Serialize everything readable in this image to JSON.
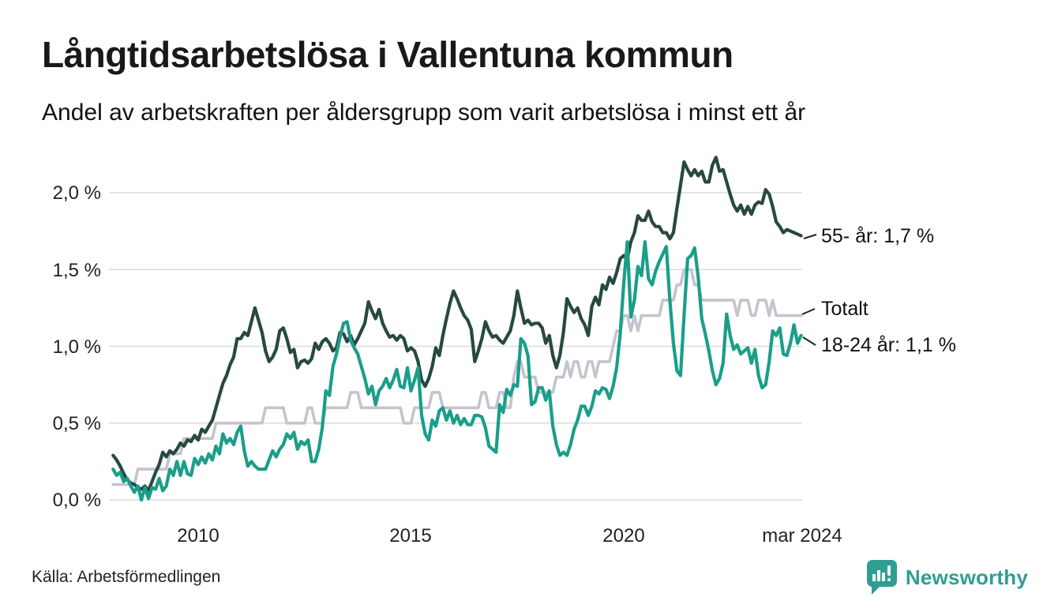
{
  "header": {
    "title": "Långtidsarbetslösa i Vallentuna kommun",
    "subtitle": "Andel av arbetskraften per åldersgrupp som varit arbetslösa i minst ett år"
  },
  "footer": {
    "source": "Källa: Arbetsförmedlingen",
    "brand_name": "Newsworthy",
    "brand_icon": "bar-chart-speech-bubble",
    "brand_color": "#2E9E93"
  },
  "colors": {
    "series_55": "#27493F",
    "series_total": "#C4C3CE",
    "series_18_24": "#1A9E8A",
    "gridline": "#DBDBDB",
    "leader": "#222222"
  },
  "chart_data": {
    "type": "line",
    "title": "Långtidsarbetslösa i Vallentuna kommun",
    "subtitle": "Andel av arbetskraften per åldersgrupp som varit arbetslösa i minst ett år",
    "x_unit": "month",
    "x_start": "2008-01",
    "x_end": "2024-03",
    "grid": true,
    "ylim": [
      0,
      2.3
    ],
    "y_ticks": [
      {
        "value": 2.0,
        "label": "2,0 %"
      },
      {
        "value": 1.5,
        "label": "1,5 %"
      },
      {
        "value": 1.0,
        "label": "1,0 %"
      },
      {
        "value": 0.5,
        "label": "0,5 %"
      },
      {
        "value": 0.0,
        "label": "0,0 %"
      }
    ],
    "x_ticks": [
      {
        "year": 2010.0,
        "label": "2010"
      },
      {
        "year": 2015.0,
        "label": "2015"
      },
      {
        "year": 2020.0,
        "label": "2020"
      },
      {
        "year": 2024.1667,
        "label": "mar 2024"
      }
    ],
    "series": [
      {
        "name": "Totalt",
        "end_label": "Totalt",
        "end_value": 1.2,
        "color": "#C4C3CE",
        "values": [
          0.1,
          0.1,
          0.1,
          0.1,
          0.1,
          0.1,
          0.1,
          0.2,
          0.2,
          0.2,
          0.2,
          0.2,
          0.2,
          0.2,
          0.2,
          0.2,
          0.3,
          0.3,
          0.3,
          0.3,
          0.4,
          0.4,
          0.4,
          0.4,
          0.4,
          0.4,
          0.4,
          0.4,
          0.4,
          0.5,
          0.5,
          0.5,
          0.5,
          0.5,
          0.5,
          0.5,
          0.5,
          0.5,
          0.5,
          0.5,
          0.5,
          0.5,
          0.5,
          0.6,
          0.6,
          0.6,
          0.6,
          0.6,
          0.6,
          0.5,
          0.5,
          0.5,
          0.5,
          0.5,
          0.5,
          0.6,
          0.6,
          0.5,
          0.5,
          0.5,
          0.6,
          0.6,
          0.6,
          0.6,
          0.6,
          0.6,
          0.6,
          0.7,
          0.7,
          0.7,
          0.6,
          0.6,
          0.6,
          0.6,
          0.6,
          0.6,
          0.6,
          0.6,
          0.6,
          0.6,
          0.6,
          0.6,
          0.5,
          0.5,
          0.5,
          0.6,
          0.6,
          0.6,
          0.6,
          0.6,
          0.7,
          0.7,
          0.7,
          0.6,
          0.6,
          0.6,
          0.6,
          0.6,
          0.6,
          0.6,
          0.6,
          0.6,
          0.6,
          0.6,
          0.7,
          0.7,
          0.6,
          0.6,
          0.6,
          0.7,
          0.7,
          0.6,
          0.6,
          0.8,
          0.9,
          0.9,
          0.8,
          0.8,
          0.8,
          0.8,
          0.7,
          0.7,
          0.7,
          0.7,
          0.7,
          0.8,
          0.8,
          0.8,
          0.9,
          0.8,
          0.9,
          0.9,
          0.8,
          0.8,
          0.9,
          0.9,
          0.8,
          0.9,
          0.9,
          0.9,
          0.9,
          1.0,
          1.1,
          1.1,
          1.2,
          1.2,
          1.1,
          1.2,
          1.1,
          1.2,
          1.2,
          1.2,
          1.2,
          1.2,
          1.2,
          1.3,
          1.3,
          1.3,
          1.3,
          1.4,
          1.4,
          1.5,
          1.5,
          1.5,
          1.4,
          1.4,
          1.3,
          1.3,
          1.3,
          1.3,
          1.3,
          1.3,
          1.3,
          1.3,
          1.3,
          1.3,
          1.2,
          1.3,
          1.3,
          1.3,
          1.2,
          1.2,
          1.3,
          1.3,
          1.3,
          1.2,
          1.3,
          1.2,
          1.2,
          1.2,
          1.2,
          1.2,
          1.2,
          1.2,
          1.2
        ]
      },
      {
        "name": "55- år",
        "end_label": "55- år: 1,7 %",
        "end_value": 1.7,
        "color": "#27493F",
        "values": [
          0.29,
          0.26,
          0.22,
          0.17,
          0.13,
          0.11,
          0.1,
          0.08,
          0.07,
          0.09,
          0.06,
          0.12,
          0.18,
          0.23,
          0.31,
          0.28,
          0.32,
          0.3,
          0.33,
          0.37,
          0.35,
          0.39,
          0.38,
          0.42,
          0.39,
          0.46,
          0.44,
          0.48,
          0.52,
          0.6,
          0.68,
          0.76,
          0.81,
          0.88,
          0.93,
          1.05,
          1.05,
          1.09,
          1.07,
          1.16,
          1.25,
          1.17,
          1.09,
          0.97,
          0.9,
          0.93,
          0.98,
          1.1,
          1.12,
          1.05,
          0.96,
          0.98,
          0.86,
          0.9,
          0.91,
          0.89,
          0.92,
          1.02,
          0.98,
          1.03,
          1.05,
          1.02,
          0.97,
          0.99,
          1.09,
          1.08,
          1.03,
          1.07,
          1.01,
          1.05,
          1.1,
          1.15,
          1.29,
          1.23,
          1.18,
          1.24,
          1.15,
          1.1,
          1.06,
          1.07,
          1.04,
          1.07,
          1.05,
          0.97,
          0.99,
          0.97,
          0.9,
          0.78,
          0.74,
          0.79,
          0.87,
          0.99,
          0.94,
          1.07,
          1.18,
          1.28,
          1.36,
          1.31,
          1.25,
          1.2,
          1.17,
          1.11,
          0.9,
          0.97,
          1.05,
          1.16,
          1.1,
          1.06,
          1.07,
          1.04,
          1.02,
          1.06,
          1.1,
          1.2,
          1.36,
          1.25,
          1.15,
          1.17,
          1.14,
          1.15,
          1.15,
          1.12,
          1.02,
          1.07,
          0.94,
          0.86,
          0.94,
          1.09,
          1.31,
          1.26,
          1.22,
          1.25,
          1.18,
          1.14,
          1.07,
          1.26,
          1.32,
          1.27,
          1.4,
          1.37,
          1.45,
          1.41,
          1.48,
          1.57,
          1.59,
          1.57,
          1.68,
          1.74,
          1.85,
          1.82,
          1.82,
          1.88,
          1.81,
          1.78,
          1.78,
          1.74,
          1.74,
          1.7,
          1.74,
          1.9,
          2.05,
          2.2,
          2.15,
          2.11,
          2.15,
          2.11,
          2.14,
          2.07,
          2.07,
          2.18,
          2.23,
          2.14,
          2.15,
          2.07,
          1.99,
          1.92,
          1.88,
          1.92,
          1.86,
          1.91,
          1.86,
          1.92,
          1.94,
          1.93,
          2.02,
          1.99,
          1.91,
          1.81,
          1.78,
          1.74,
          1.76,
          1.75,
          1.74,
          1.73,
          1.72
        ]
      },
      {
        "name": "18-24 år",
        "end_label": "18-24 år: 1,1 %",
        "end_value": 1.1,
        "color": "#1A9E8A",
        "values": [
          0.2,
          0.16,
          0.18,
          0.12,
          0.14,
          0.09,
          0.05,
          0.09,
          0.0,
          0.08,
          0.01,
          0.08,
          0.07,
          0.14,
          0.06,
          0.09,
          0.2,
          0.16,
          0.25,
          0.16,
          0.25,
          0.17,
          0.16,
          0.27,
          0.23,
          0.28,
          0.24,
          0.3,
          0.26,
          0.35,
          0.3,
          0.43,
          0.37,
          0.4,
          0.36,
          0.44,
          0.48,
          0.32,
          0.22,
          0.25,
          0.22,
          0.2,
          0.2,
          0.2,
          0.26,
          0.32,
          0.28,
          0.33,
          0.36,
          0.43,
          0.4,
          0.44,
          0.33,
          0.38,
          0.36,
          0.39,
          0.25,
          0.25,
          0.33,
          0.47,
          0.71,
          0.68,
          0.87,
          0.95,
          1.06,
          1.15,
          1.16,
          1.04,
          0.99,
          0.95,
          0.87,
          0.79,
          0.69,
          0.74,
          0.62,
          0.71,
          0.74,
          0.79,
          0.73,
          0.78,
          0.85,
          0.74,
          0.73,
          0.86,
          0.71,
          0.78,
          0.86,
          0.55,
          0.43,
          0.39,
          0.52,
          0.48,
          0.58,
          0.6,
          0.52,
          0.58,
          0.5,
          0.55,
          0.49,
          0.53,
          0.49,
          0.49,
          0.55,
          0.55,
          0.54,
          0.47,
          0.35,
          0.33,
          0.31,
          0.62,
          0.57,
          0.72,
          0.68,
          0.75,
          0.74,
          1.05,
          1.02,
          0.94,
          0.62,
          0.64,
          0.73,
          0.73,
          0.65,
          0.71,
          0.48,
          0.36,
          0.29,
          0.31,
          0.29,
          0.36,
          0.46,
          0.52,
          0.61,
          0.61,
          0.55,
          0.61,
          0.71,
          0.69,
          0.73,
          0.72,
          0.66,
          0.74,
          0.86,
          1.08,
          1.41,
          1.68,
          1.19,
          1.3,
          1.52,
          1.46,
          1.68,
          1.44,
          1.4,
          1.49,
          1.55,
          1.6,
          1.65,
          1.3,
          1.02,
          0.84,
          0.81,
          1.2,
          1.57,
          1.59,
          1.64,
          1.45,
          1.18,
          1.08,
          0.97,
          0.84,
          0.75,
          0.79,
          0.89,
          1.21,
          1.07,
          0.98,
          1.01,
          0.95,
          0.97,
          0.99,
          0.89,
          0.98,
          0.81,
          0.73,
          0.75,
          0.9,
          1.1,
          1.07,
          1.12,
          0.95,
          0.94,
          1.02,
          1.14,
          1.02,
          1.07
        ]
      }
    ],
    "legend_position": "right-end-labels"
  }
}
